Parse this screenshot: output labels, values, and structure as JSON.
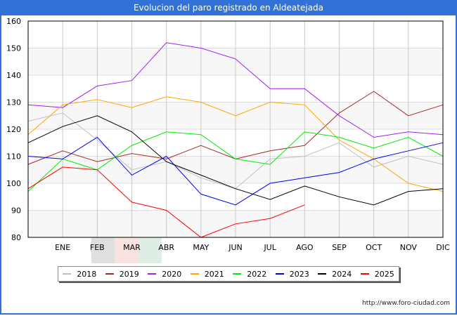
{
  "title": "Evolucion del paro registrado en Aldeatejada",
  "source": "http://www.foro-ciudad.com",
  "chart_data": {
    "type": "line",
    "title": "Evolucion del paro registrado en Aldeatejada",
    "xlabel": "",
    "ylabel": "",
    "x_labels": [
      "",
      "ENE",
      "FEB",
      "MAR",
      "ABR",
      "MAY",
      "JUN",
      "JUL",
      "AGO",
      "SEP",
      "OCT",
      "NOV",
      "DIC"
    ],
    "ylim": [
      80,
      160
    ],
    "yticks": [
      80,
      90,
      100,
      110,
      120,
      130,
      140,
      150,
      160
    ],
    "grid": true,
    "legend_position": "bottom",
    "series": [
      {
        "name": "2018",
        "color": "#c0c0c0",
        "values": [
          123,
          126,
          116,
          105,
          108,
          102,
          98,
          109,
          110,
          115,
          106,
          110,
          107
        ]
      },
      {
        "name": "2019",
        "color": "#a52a2a",
        "values": [
          107,
          112,
          108,
          111,
          109,
          114,
          109,
          112,
          114,
          126,
          134,
          125,
          129
        ]
      },
      {
        "name": "2020",
        "color": "#a020f0",
        "values": [
          129,
          128,
          136,
          138,
          152,
          150,
          146,
          135,
          135,
          125,
          117,
          119,
          118
        ]
      },
      {
        "name": "2021",
        "color": "#ffa500",
        "values": [
          118,
          129,
          131,
          128,
          132,
          130,
          125,
          130,
          129,
          116,
          109,
          100,
          97
        ]
      },
      {
        "name": "2022",
        "color": "#00ee00",
        "values": [
          97,
          109,
          105,
          114,
          119,
          118,
          109,
          107,
          119,
          117,
          113,
          117,
          110
        ]
      },
      {
        "name": "2023",
        "color": "#0000ee",
        "values": [
          110,
          109,
          117,
          103,
          110,
          96,
          92,
          100,
          102,
          104,
          109,
          112,
          115
        ]
      },
      {
        "name": "2024",
        "color": "#000000",
        "values": [
          115,
          121,
          125,
          119,
          108,
          103,
          98,
          94,
          99,
          95,
          92,
          97,
          98
        ]
      },
      {
        "name": "2025",
        "color": "#ff0000",
        "values": [
          98,
          106,
          105,
          93,
          90,
          80,
          85,
          87,
          92,
          null,
          null,
          null,
          null
        ]
      }
    ]
  }
}
